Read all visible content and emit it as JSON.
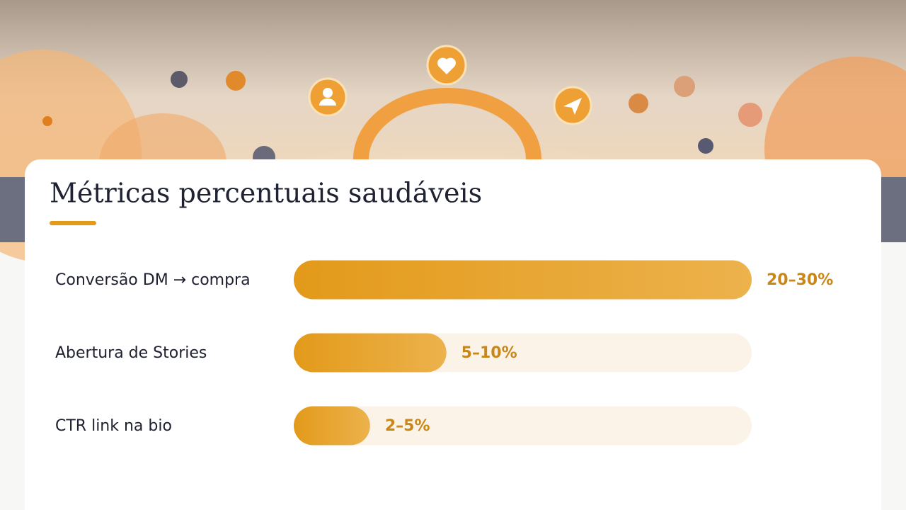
{
  "chart_data": {
    "type": "bar",
    "orientation": "horizontal",
    "title": "Métricas percentuais saudáveis",
    "categories": [
      "Conversão DM → compra",
      "Abertura de Stories",
      "CTR link na bio"
    ],
    "values": [
      30,
      10,
      5
    ],
    "value_labels": [
      "20–30%",
      "5–10%",
      "2–5%"
    ],
    "color": "#e39a1a",
    "xlim": [
      0,
      30
    ]
  }
}
